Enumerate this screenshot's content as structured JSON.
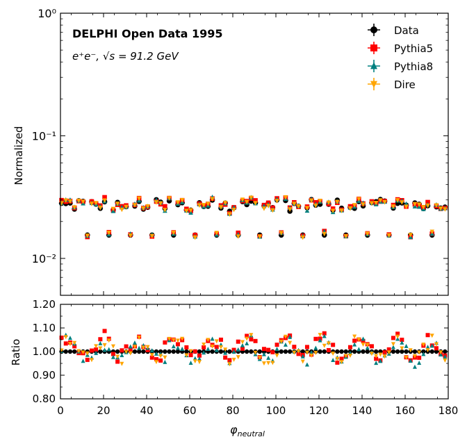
{
  "chart_data": {
    "type": "scatter",
    "figure_annotation": {
      "title": "DELPHI Open Data 1995",
      "subtitle_prefix": "e⁺e⁻, √s = 91.2 GeV"
    },
    "legend": {
      "placement": "top-right",
      "entries": [
        {
          "name": "Data",
          "color": "#000000",
          "marker": "circle"
        },
        {
          "name": "Pythia5",
          "color": "#ff0000",
          "marker": "square"
        },
        {
          "name": "Pythia8",
          "color": "#008080",
          "marker": "triangle-up"
        },
        {
          "name": "Dire",
          "color": "#ffa500",
          "marker": "triangle-down"
        }
      ]
    },
    "top_panel": {
      "ylabel": "Normalized",
      "yscale": "log",
      "ylim": [
        0.005,
        1.0
      ],
      "major_ticks": [
        {
          "value": 1,
          "label": "10⁰"
        },
        {
          "value": 0.1,
          "label": "10⁻¹"
        },
        {
          "value": 0.01,
          "label": "10⁻²"
        }
      ]
    },
    "bottom_panel": {
      "ylabel": "Ratio",
      "ylim": [
        0.8,
        1.2
      ],
      "yticks": [
        0.8,
        0.9,
        1.0,
        1.1,
        1.2
      ],
      "ytick_labels": [
        "0.80",
        "0.90",
        "1.00",
        "1.10",
        "1.20"
      ]
    },
    "x_axis": {
      "xlabel": "φ",
      "xlabel_sub": "neutral",
      "xlim": [
        0,
        180
      ],
      "xticks": [
        0,
        20,
        40,
        60,
        80,
        100,
        120,
        140,
        160,
        180
      ],
      "xtick_labels": [
        "0",
        "20",
        "40",
        "60",
        "80",
        "100",
        "120",
        "140",
        "160",
        "180"
      ]
    },
    "bins": {
      "n": 180,
      "width": 1,
      "dip_every": 5,
      "dip_offset": 2
    },
    "data_level": 0.0275,
    "dip_level": 0.0155,
    "series": [
      {
        "name": "Data",
        "ratio_mean": 1.0,
        "spread": 0.0
      },
      {
        "name": "Pythia5",
        "ratio_mean": 1.02,
        "spread": 0.055
      },
      {
        "name": "Pythia8",
        "ratio_mean": 1.0,
        "spread": 0.055
      },
      {
        "name": "Dire",
        "ratio_mean": 1.01,
        "spread": 0.055
      }
    ]
  }
}
